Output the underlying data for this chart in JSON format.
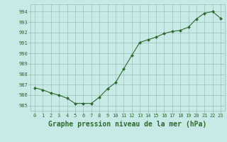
{
  "x": [
    0,
    1,
    2,
    3,
    4,
    5,
    6,
    7,
    8,
    9,
    10,
    11,
    12,
    13,
    14,
    15,
    16,
    17,
    18,
    19,
    20,
    21,
    22,
    23
  ],
  "y": [
    986.7,
    986.5,
    986.2,
    986.0,
    985.7,
    985.2,
    985.2,
    985.2,
    985.8,
    986.6,
    987.2,
    988.5,
    989.8,
    991.05,
    991.3,
    991.55,
    991.9,
    992.1,
    992.2,
    992.5,
    993.3,
    993.85,
    994.0,
    993.35
  ],
  "line_color": "#2d6a2d",
  "marker_color": "#2d6a2d",
  "bg_color": "#c8eae6",
  "grid_color": "#9dbfba",
  "xlabel": "Graphe pression niveau de la mer (hPa)",
  "xlim": [
    -0.5,
    23.5
  ],
  "ylim": [
    984.5,
    994.7
  ],
  "yticks": [
    985,
    986,
    987,
    988,
    989,
    990,
    991,
    992,
    993,
    994
  ],
  "xticks": [
    0,
    1,
    2,
    3,
    4,
    5,
    6,
    7,
    8,
    9,
    10,
    11,
    12,
    13,
    14,
    15,
    16,
    17,
    18,
    19,
    20,
    21,
    22,
    23
  ],
  "tick_label_fontsize": 5.0,
  "xlabel_fontsize": 7.0,
  "marker_size": 2.0,
  "line_width": 0.8
}
